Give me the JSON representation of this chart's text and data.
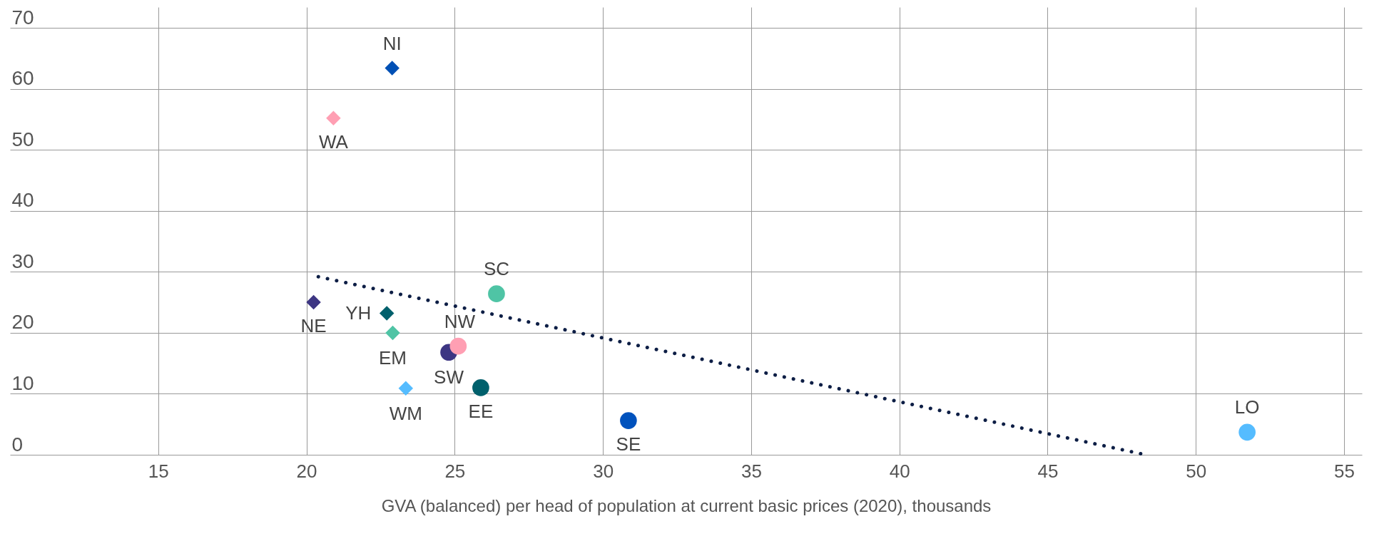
{
  "chart_data": {
    "type": "scatter",
    "xlabel": "GVA (balanced) per head of population at current basic prices (2020), thousands",
    "xlim": [
      10,
      55.6
    ],
    "ylim": [
      0,
      73.4
    ],
    "xticks": [
      15,
      20,
      25,
      30,
      35,
      40,
      45,
      50,
      55
    ],
    "yticks": [
      0,
      10,
      20,
      30,
      40,
      50,
      60,
      70
    ],
    "grid": true,
    "series": [
      {
        "marker": "diamond",
        "x": [
          22.89,
          20.91,
          20.24,
          22.71,
          22.91,
          23.35
        ],
        "values": [
          63.4,
          55.2,
          25.0,
          23.2,
          20.0,
          10.9
        ],
        "colors": [
          "#0050b5",
          "#ff9fb3",
          "#3d3683",
          "#00606c",
          "#4fc4a5",
          "#55bcff"
        ]
      },
      {
        "marker": "circle",
        "x": [
          24.8,
          25.12,
          25.88,
          26.41,
          30.86,
          51.73
        ],
        "values": [
          16.8,
          17.8,
          11.0,
          26.4,
          5.6,
          3.7
        ],
        "colors": [
          "#3d3683",
          "#ff9fb3",
          "#00606c",
          "#4fc4a5",
          "#0052bd",
          "#55bcff"
        ]
      },
      {
        "type": "line",
        "line_style": "dotted",
        "color": "#0d1e45",
        "x": [
          20.4,
          48.31
        ],
        "values": [
          29.2,
          0
        ]
      }
    ],
    "annotations": [
      {
        "text": "NI",
        "x": 22.89,
        "y": 63.4
      },
      {
        "text": "WA",
        "x": 20.91,
        "y": 55.2
      },
      {
        "text": "NE",
        "x": 20.24,
        "y": 25.0
      },
      {
        "text": "YH",
        "x": 22.71,
        "y": 23.2
      },
      {
        "text": "EM",
        "x": 22.91,
        "y": 20.0
      },
      {
        "text": "SW",
        "x": 24.8,
        "y": 16.8
      },
      {
        "text": "NW",
        "x": 25.12,
        "y": 17.8
      },
      {
        "text": "WM",
        "x": 23.35,
        "y": 10.9
      },
      {
        "text": "EE",
        "x": 25.88,
        "y": 11.0
      },
      {
        "text": "SC",
        "x": 26.41,
        "y": 26.4
      },
      {
        "text": "SE",
        "x": 30.86,
        "y": 5.6
      },
      {
        "text": "LO",
        "x": 51.73,
        "y": 3.7
      }
    ]
  }
}
